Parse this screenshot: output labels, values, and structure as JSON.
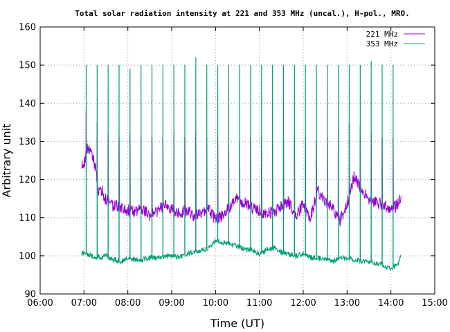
{
  "chart_data": {
    "type": "line",
    "title": "Total solar radiation intensity at 221 and 353 MHz (uncal.), H-pol., MRO.",
    "xlabel": "Time (UT)",
    "ylabel": "Arbitrary unit",
    "xlim": [
      "06:00",
      "15:00"
    ],
    "ylim": [
      90,
      160
    ],
    "x_ticks": [
      "06:00",
      "07:00",
      "08:00",
      "09:00",
      "10:00",
      "11:00",
      "12:00",
      "13:00",
      "14:00",
      "15:00"
    ],
    "y_ticks": [
      90,
      100,
      110,
      120,
      130,
      140,
      150,
      160
    ],
    "grid": true,
    "legend_position": "top-right",
    "colors": {
      "s221": "#9400d3",
      "s353": "#009e73",
      "grid": "#a0a0a0",
      "axis": "#000000"
    },
    "calibration_spikes": {
      "times": [
        "07:03",
        "07:18",
        "07:33",
        "07:48",
        "08:03",
        "08:18",
        "08:33",
        "08:48",
        "09:03",
        "09:18",
        "09:33",
        "09:48",
        "10:03",
        "10:18",
        "10:33",
        "10:48",
        "11:03",
        "11:18",
        "11:33",
        "11:48",
        "12:03",
        "12:18",
        "12:33",
        "12:48",
        "13:03",
        "13:18",
        "13:33",
        "13:48",
        "14:03"
      ],
      "s353_peak": [
        150,
        150,
        150,
        150,
        149,
        150,
        150,
        150,
        150,
        150,
        152,
        150,
        150,
        150,
        150,
        150,
        150,
        150,
        150,
        150,
        150,
        150,
        150,
        150,
        150,
        150,
        151,
        150,
        150
      ],
      "s221_peak": [
        138,
        135,
        132,
        131,
        132,
        131,
        131,
        131,
        132,
        131,
        132,
        131,
        131,
        129,
        130,
        131,
        131,
        130,
        131,
        131,
        131,
        130,
        131,
        133,
        135,
        134,
        132,
        131,
        131
      ],
      "s221_low": [
        128,
        124,
        125,
        125,
        125,
        125,
        125,
        125,
        125,
        125,
        125,
        125,
        125,
        125,
        125,
        125,
        125,
        125,
        125,
        125,
        125,
        125,
        125,
        125,
        125,
        125,
        125,
        125,
        124
      ]
    },
    "series": [
      {
        "name": "221 MHz",
        "x": [
          "06:57",
          "07:00",
          "07:05",
          "07:10",
          "07:15",
          "07:20",
          "07:25",
          "07:30",
          "07:40",
          "07:50",
          "08:00",
          "08:10",
          "08:20",
          "08:30",
          "08:40",
          "08:50",
          "09:00",
          "09:10",
          "09:20",
          "09:30",
          "09:40",
          "09:50",
          "10:00",
          "10:10",
          "10:20",
          "10:30",
          "10:40",
          "10:50",
          "11:00",
          "11:10",
          "11:20",
          "11:30",
          "11:40",
          "11:50",
          "12:00",
          "12:10",
          "12:20",
          "12:30",
          "12:40",
          "12:50",
          "13:00",
          "13:10",
          "13:20",
          "13:30",
          "13:40",
          "13:50",
          "14:00",
          "14:10",
          "14:14"
        ],
        "y": [
          123.5,
          124,
          128.5,
          127.5,
          123.5,
          116.5,
          117,
          114.5,
          113,
          113,
          112,
          111.5,
          112.5,
          110.5,
          111.5,
          113.5,
          112,
          111,
          112,
          110.5,
          111,
          112.5,
          109.5,
          110.5,
          113,
          115,
          114,
          112.5,
          112,
          111,
          111.5,
          113,
          114,
          110.5,
          113.5,
          110,
          117,
          114,
          113,
          109,
          113.5,
          121,
          117,
          115,
          114,
          113.5,
          112,
          113.5,
          116
        ]
      },
      {
        "name": "353 MHz",
        "x": [
          "06:57",
          "07:00",
          "07:05",
          "07:10",
          "07:15",
          "07:20",
          "07:25",
          "07:30",
          "07:40",
          "07:50",
          "08:00",
          "08:10",
          "08:20",
          "08:30",
          "08:40",
          "08:50",
          "09:00",
          "09:10",
          "09:20",
          "09:30",
          "09:40",
          "09:50",
          "10:00",
          "10:10",
          "10:20",
          "10:30",
          "10:40",
          "10:50",
          "11:00",
          "11:10",
          "11:20",
          "11:30",
          "11:40",
          "11:50",
          "12:00",
          "12:10",
          "12:20",
          "12:30",
          "12:40",
          "12:50",
          "13:00",
          "13:10",
          "13:20",
          "13:30",
          "13:40",
          "13:50",
          "14:00",
          "14:10",
          "14:14"
        ],
        "y": [
          100.5,
          101,
          100.5,
          100,
          99.5,
          99.8,
          99.5,
          100,
          99,
          98.5,
          99.5,
          99,
          99,
          99.5,
          99.5,
          100,
          100,
          99.5,
          100.5,
          101,
          101.5,
          102,
          104,
          103.5,
          103,
          102.5,
          101.5,
          101.5,
          100.5,
          101.5,
          102,
          101,
          100.5,
          100,
          100.5,
          99.5,
          99.5,
          99,
          98.5,
          99.5,
          99.5,
          99,
          98.5,
          98.5,
          98,
          97.5,
          96.5,
          98,
          100.5
        ]
      }
    ]
  }
}
